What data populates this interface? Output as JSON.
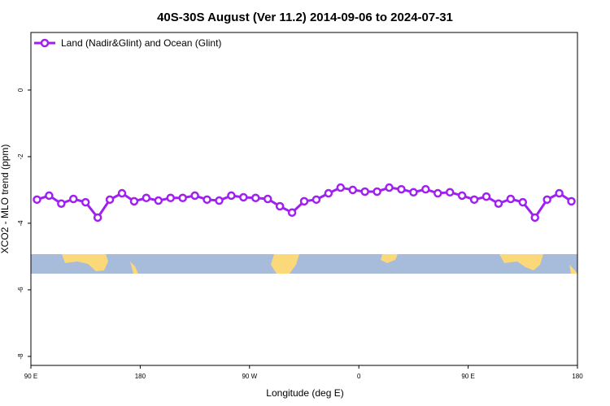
{
  "chart_data": {
    "type": "line",
    "title": "40S-30S August (Ver 11.2)   2014-09-06 to 2024-07-31",
    "x_label": "Longitude (deg E)",
    "y_label": "XCO2 - MLO trend (ppm)",
    "xlim": [
      90,
      540
    ],
    "ylim": [
      -8.27,
      1.73
    ],
    "xticks": [
      {
        "value": 90,
        "label": "90 E"
      },
      {
        "value": 180,
        "label": "180"
      },
      {
        "value": 270,
        "label": "90 W"
      },
      {
        "value": 360,
        "label": "0"
      },
      {
        "value": 450,
        "label": "90 E"
      },
      {
        "value": 540,
        "label": "180"
      }
    ],
    "yticks": [
      -8,
      -6,
      -4,
      -2,
      0
    ],
    "legend_position": "top-left",
    "x": [
      95,
      105,
      115,
      125,
      135,
      145,
      155,
      165,
      175,
      185,
      195,
      205,
      215,
      225,
      235,
      245,
      255,
      265,
      275,
      285,
      295,
      305,
      315,
      325,
      335,
      345,
      355,
      365,
      375,
      385,
      395,
      405,
      415,
      425,
      435,
      445,
      455,
      465,
      475,
      485,
      495,
      505,
      515,
      525,
      535
    ],
    "series": [
      {
        "name": "Land (Nadir&Glint) and Ocean (Glint)",
        "color": "#a020f0",
        "values": [
          -3.29,
          -3.17,
          -3.41,
          -3.27,
          -3.37,
          -3.83,
          -3.29,
          -3.1,
          -3.34,
          -3.24,
          -3.32,
          -3.24,
          -3.24,
          -3.17,
          -3.29,
          -3.32,
          -3.17,
          -3.22,
          -3.24,
          -3.27,
          -3.49,
          -3.68,
          -3.34,
          -3.29,
          -3.1,
          -2.93,
          -3.0,
          -3.05,
          -3.05,
          -2.93,
          -2.98,
          -3.07,
          -2.98,
          -3.1,
          -3.07,
          -3.17,
          -3.29,
          -3.2,
          -3.41,
          -3.27,
          -3.37,
          -3.83,
          -3.29,
          -3.1,
          -3.34
        ]
      }
    ]
  }
}
